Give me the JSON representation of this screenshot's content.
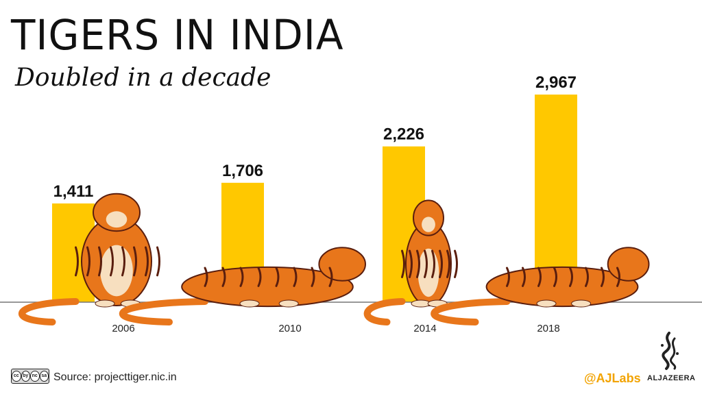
{
  "header": {
    "title": "TIGERS IN INDIA",
    "subtitle": "Doubled in a decade"
  },
  "chart_data": {
    "type": "bar",
    "categories": [
      "2006",
      "2010",
      "2014",
      "2018"
    ],
    "values": [
      1411,
      1706,
      2226,
      2967
    ],
    "value_labels": [
      "1,411",
      "1,706",
      "2,226",
      "2,967"
    ],
    "title": "TIGERS IN INDIA",
    "subtitle": "Doubled in a decade",
    "xlabel": "",
    "ylabel": "",
    "ylim": [
      0,
      2967
    ],
    "grid": false,
    "bar_color": "#ffc800",
    "baseline_color": "#777777"
  },
  "footer": {
    "source": "Source: projecttiger.nic.in",
    "handle": "@AJLabs",
    "brand": "ALJAZEERA",
    "license": [
      "cc",
      "by",
      "nc",
      "sa"
    ]
  },
  "colors": {
    "accent": "#ffc800",
    "handle": "#f2a300",
    "tiger_orange": "#e8761b",
    "tiger_stripe": "#5a1e0e",
    "tiger_cream": "#f7dfbf"
  },
  "icons": [
    "tiger-illustration",
    "creative-commons-icon",
    "aljazeera-logo-icon"
  ]
}
